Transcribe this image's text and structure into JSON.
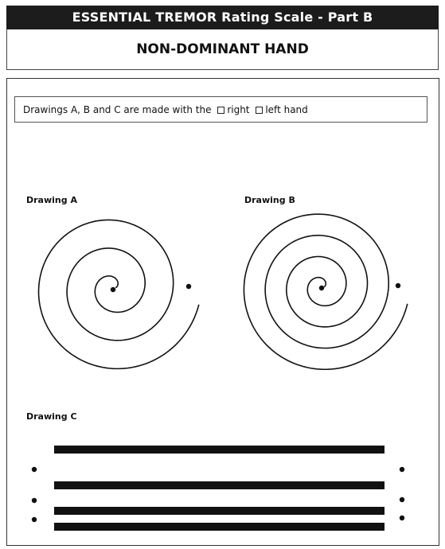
{
  "header": {
    "title": "ESSENTIAL TREMOR Rating Scale - Part B"
  },
  "subheader": {
    "title": "NON-DOMINANT HAND"
  },
  "instructions": {
    "prefix": "Drawings A, B and C are made with the",
    "option_right": "right",
    "option_left": "left hand"
  },
  "drawings": {
    "a_label": "Drawing A",
    "b_label": "Drawing B",
    "c_label": "Drawing C"
  }
}
